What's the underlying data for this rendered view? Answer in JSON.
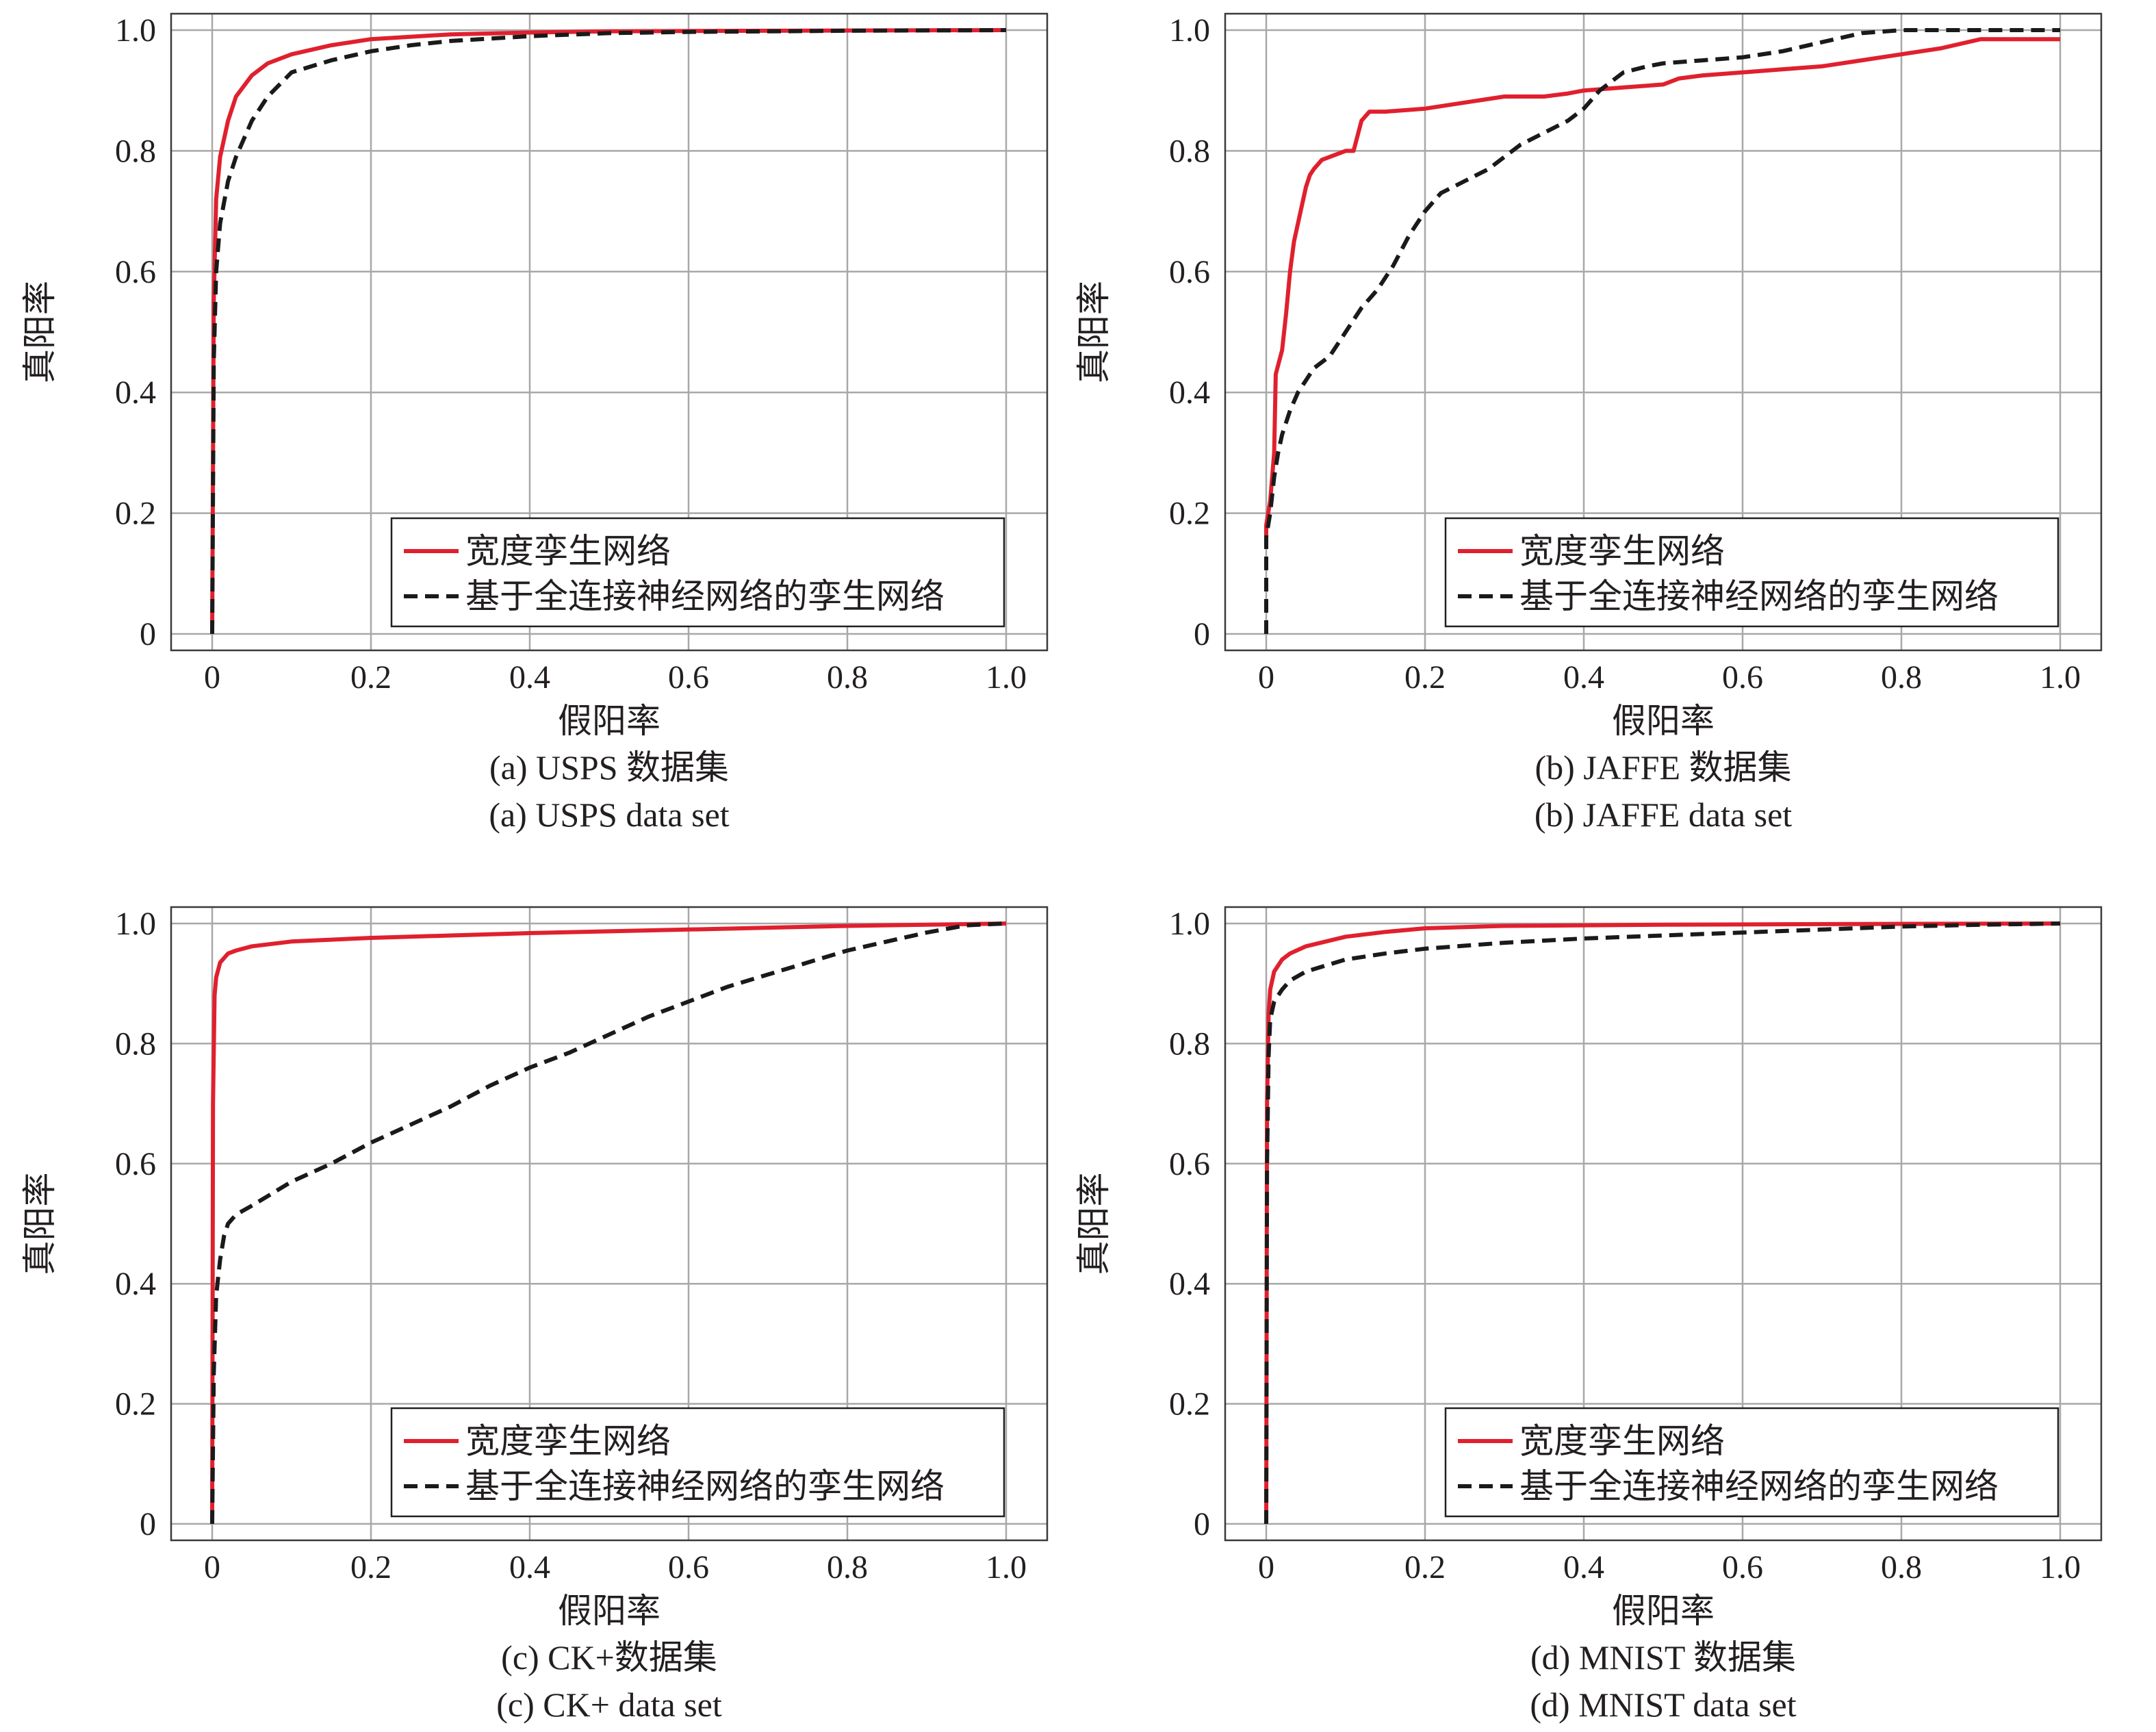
{
  "chart_data": [
    {
      "type": "line",
      "caption_cn": "(a) USPS 数据集",
      "caption_en": "(a) USPS data set",
      "xlabel": "假阳率",
      "ylabel": "真阳率",
      "xlim": [
        0,
        1
      ],
      "ylim": [
        0,
        1
      ],
      "xticks": [
        "0",
        "0.2",
        "0.4",
        "0.6",
        "0.8",
        "1.0"
      ],
      "yticks": [
        "0",
        "0.2",
        "0.4",
        "0.6",
        "0.8",
        "1.0"
      ],
      "grid": true,
      "legend_position": "bottom-right",
      "series": [
        {
          "name": "宽度孪生网络",
          "color": "#e0202e",
          "style": "solid",
          "x": [
            0,
            0.002,
            0.005,
            0.01,
            0.02,
            0.03,
            0.05,
            0.07,
            0.1,
            0.15,
            0.2,
            0.3,
            0.4,
            0.5,
            0.7,
            1.0
          ],
          "y": [
            0,
            0.55,
            0.72,
            0.79,
            0.85,
            0.89,
            0.925,
            0.945,
            0.96,
            0.975,
            0.985,
            0.993,
            0.996,
            0.998,
            0.999,
            1.0
          ]
        },
        {
          "name": "基于全连接神经网络的孪生网络",
          "color": "#1a1a1a",
          "style": "dashed",
          "x": [
            0,
            0.002,
            0.005,
            0.01,
            0.02,
            0.03,
            0.05,
            0.07,
            0.1,
            0.15,
            0.2,
            0.25,
            0.3,
            0.4,
            0.5,
            0.6,
            0.7,
            0.8,
            1.0
          ],
          "y": [
            0,
            0.45,
            0.6,
            0.68,
            0.75,
            0.79,
            0.85,
            0.89,
            0.93,
            0.95,
            0.965,
            0.975,
            0.982,
            0.99,
            0.995,
            0.997,
            0.998,
            0.999,
            1.0
          ]
        }
      ]
    },
    {
      "type": "line",
      "caption_cn": "(b) JAFFE 数据集",
      "caption_en": "(b) JAFFE data set",
      "xlabel": "假阳率",
      "ylabel": "真阳率",
      "xlim": [
        0,
        1
      ],
      "ylim": [
        0,
        1
      ],
      "xticks": [
        "0",
        "0.2",
        "0.4",
        "0.6",
        "0.8",
        "1.0"
      ],
      "yticks": [
        "0",
        "0.2",
        "0.4",
        "0.6",
        "0.8",
        "1.0"
      ],
      "grid": true,
      "legend_position": "bottom-right",
      "series": [
        {
          "name": "宽度孪生网络",
          "color": "#e0202e",
          "style": "solid",
          "x": [
            0,
            0,
            0.005,
            0.01,
            0.012,
            0.02,
            0.025,
            0.03,
            0.035,
            0.04,
            0.045,
            0.05,
            0.055,
            0.06,
            0.07,
            0.08,
            0.1,
            0.11,
            0.12,
            0.13,
            0.15,
            0.2,
            0.25,
            0.3,
            0.35,
            0.38,
            0.4,
            0.45,
            0.5,
            0.52,
            0.55,
            0.6,
            0.65,
            0.7,
            0.75,
            0.8,
            0.85,
            0.9,
            1.0
          ],
          "y": [
            0.15,
            0.18,
            0.22,
            0.3,
            0.43,
            0.47,
            0.53,
            0.6,
            0.65,
            0.68,
            0.71,
            0.74,
            0.76,
            0.77,
            0.785,
            0.79,
            0.8,
            0.8,
            0.85,
            0.865,
            0.865,
            0.87,
            0.88,
            0.89,
            0.89,
            0.895,
            0.9,
            0.905,
            0.91,
            0.92,
            0.925,
            0.93,
            0.935,
            0.94,
            0.95,
            0.96,
            0.97,
            0.985,
            0.985
          ]
        },
        {
          "name": "基于全连接神经网络的孪生网络",
          "color": "#1a1a1a",
          "style": "dashed",
          "x": [
            0,
            0,
            0.005,
            0.01,
            0.015,
            0.02,
            0.03,
            0.04,
            0.05,
            0.06,
            0.08,
            0.1,
            0.12,
            0.14,
            0.16,
            0.18,
            0.2,
            0.22,
            0.25,
            0.28,
            0.3,
            0.32,
            0.35,
            0.38,
            0.4,
            0.42,
            0.45,
            0.48,
            0.5,
            0.55,
            0.6,
            0.65,
            0.7,
            0.75,
            0.8,
            1.0
          ],
          "y": [
            0,
            0.16,
            0.2,
            0.26,
            0.3,
            0.33,
            0.37,
            0.4,
            0.42,
            0.44,
            0.46,
            0.5,
            0.54,
            0.57,
            0.61,
            0.66,
            0.7,
            0.73,
            0.75,
            0.77,
            0.79,
            0.81,
            0.83,
            0.85,
            0.87,
            0.9,
            0.93,
            0.94,
            0.945,
            0.95,
            0.955,
            0.965,
            0.98,
            0.995,
            1.0,
            1.0
          ]
        }
      ]
    },
    {
      "type": "line",
      "caption_cn": "(c) CK+数据集",
      "caption_en": "(c) CK+ data set",
      "xlabel": "假阳率",
      "ylabel": "真阳率",
      "xlim": [
        0,
        1
      ],
      "ylim": [
        0,
        1
      ],
      "xticks": [
        "0",
        "0.2",
        "0.4",
        "0.6",
        "0.8",
        "1.0"
      ],
      "yticks": [
        "0",
        "0.2",
        "0.4",
        "0.6",
        "0.8",
        "1.0"
      ],
      "grid": true,
      "legend_position": "bottom-right",
      "series": [
        {
          "name": "宽度孪生网络",
          "color": "#e0202e",
          "style": "solid",
          "x": [
            0,
            0.001,
            0.003,
            0.005,
            0.01,
            0.02,
            0.03,
            0.05,
            0.1,
            0.2,
            0.3,
            0.4,
            0.5,
            0.6,
            0.7,
            0.8,
            0.9,
            1.0
          ],
          "y": [
            0,
            0.7,
            0.88,
            0.91,
            0.935,
            0.95,
            0.955,
            0.962,
            0.97,
            0.976,
            0.98,
            0.984,
            0.987,
            0.99,
            0.993,
            0.996,
            0.998,
            1.0
          ]
        },
        {
          "name": "基于全连接神经网络的孪生网络",
          "color": "#1a1a1a",
          "style": "dashed",
          "x": [
            0,
            0.002,
            0.005,
            0.01,
            0.015,
            0.02,
            0.03,
            0.05,
            0.1,
            0.15,
            0.2,
            0.25,
            0.3,
            0.35,
            0.4,
            0.45,
            0.5,
            0.55,
            0.6,
            0.65,
            0.7,
            0.75,
            0.8,
            0.85,
            0.9,
            0.95,
            1.0
          ],
          "y": [
            0,
            0.25,
            0.38,
            0.44,
            0.48,
            0.5,
            0.515,
            0.53,
            0.57,
            0.6,
            0.635,
            0.665,
            0.695,
            0.73,
            0.76,
            0.785,
            0.815,
            0.845,
            0.87,
            0.895,
            0.915,
            0.935,
            0.955,
            0.97,
            0.985,
            0.997,
            1.0
          ]
        }
      ]
    },
    {
      "type": "line",
      "caption_cn": "(d) MNIST 数据集",
      "caption_en": "(d) MNIST data set",
      "xlabel": "假阳率",
      "ylabel": "真阳率",
      "xlim": [
        0,
        1
      ],
      "ylim": [
        0,
        1
      ],
      "xticks": [
        "0",
        "0.2",
        "0.4",
        "0.6",
        "0.8",
        "1.0"
      ],
      "yticks": [
        "0",
        "0.2",
        "0.4",
        "0.6",
        "0.8",
        "1.0"
      ],
      "grid": true,
      "legend_position": "bottom-right",
      "series": [
        {
          "name": "宽度孪生网络",
          "color": "#e0202e",
          "style": "solid",
          "x": [
            0,
            0.001,
            0.003,
            0.005,
            0.01,
            0.02,
            0.03,
            0.05,
            0.1,
            0.15,
            0.2,
            0.3,
            0.5,
            0.7,
            1.0
          ],
          "y": [
            0,
            0.7,
            0.85,
            0.89,
            0.92,
            0.94,
            0.95,
            0.962,
            0.978,
            0.986,
            0.992,
            0.996,
            0.998,
            0.999,
            1.0
          ]
        },
        {
          "name": "基于全连接神经网络的孪生网络",
          "color": "#1a1a1a",
          "style": "dashed",
          "x": [
            0,
            0.001,
            0.003,
            0.005,
            0.01,
            0.02,
            0.03,
            0.05,
            0.1,
            0.15,
            0.2,
            0.3,
            0.4,
            0.5,
            0.6,
            0.7,
            0.8,
            0.9,
            1.0
          ],
          "y": [
            0,
            0.6,
            0.78,
            0.84,
            0.87,
            0.89,
            0.905,
            0.92,
            0.94,
            0.95,
            0.958,
            0.968,
            0.975,
            0.98,
            0.985,
            0.99,
            0.995,
            0.998,
            1.0
          ]
        }
      ]
    }
  ]
}
